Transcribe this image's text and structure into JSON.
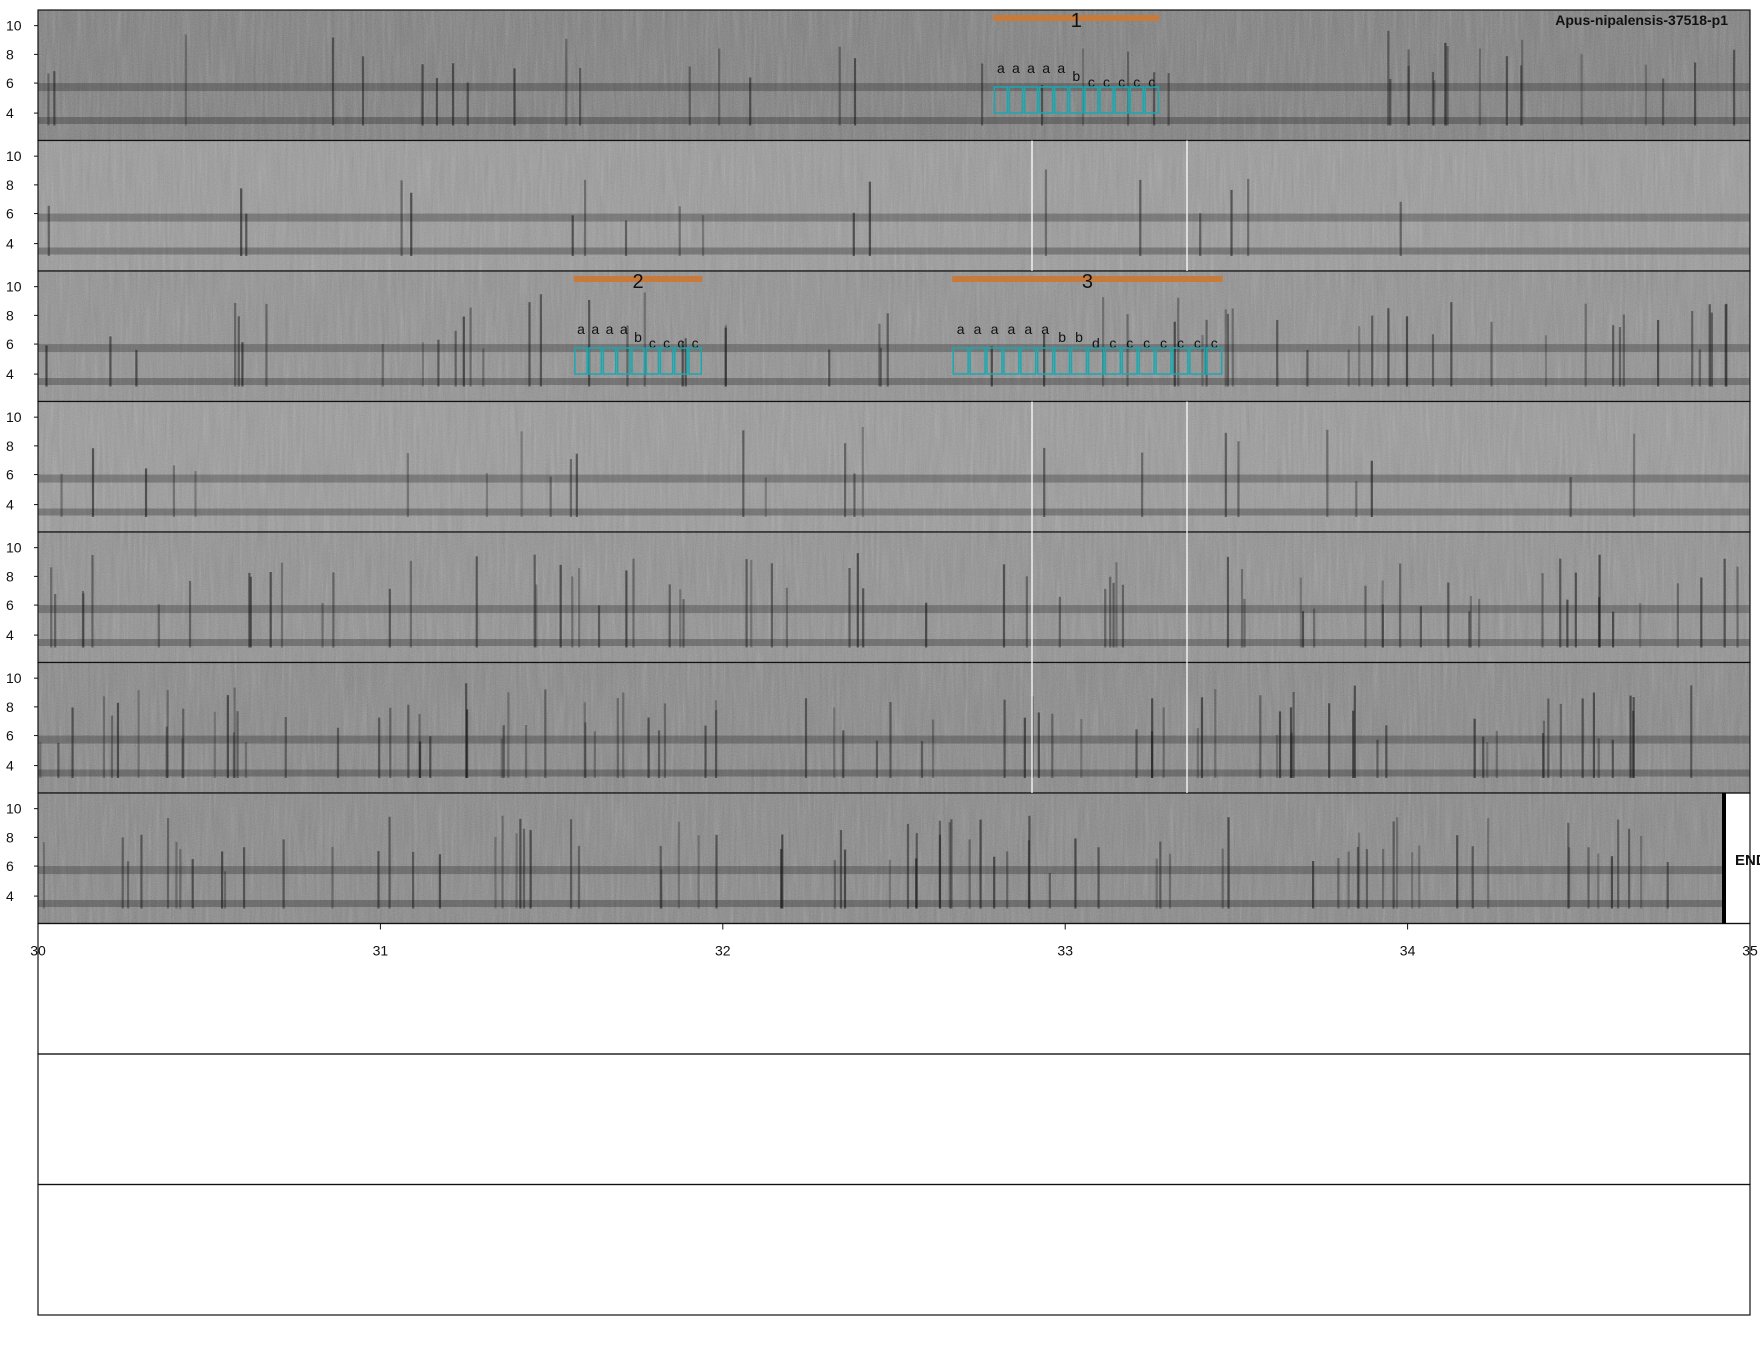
{
  "title": "Apus-nipalensis-37518-p1",
  "end_label": "END",
  "chart_data": {
    "type": "spectrogram",
    "y_ticks": [
      "10",
      "8",
      "6",
      "4"
    ],
    "x_ticks_last_row": [
      "30",
      "31",
      "32",
      "33",
      "34",
      "35"
    ],
    "row_count": 10,
    "filled_rows": 7,
    "empty_rows": 3,
    "colors": {
      "background": "#7a7a7a",
      "phrase_bar": "#c87a3a",
      "syllable_box": "#1aa8b0",
      "label_text": "#111111"
    },
    "phrases": [
      {
        "label": "1",
        "row": 1,
        "start_frac": 0.558,
        "end_frac": 0.655
      },
      {
        "label": "2",
        "row": 3,
        "start_frac": 0.313,
        "end_frac": 0.388
      },
      {
        "label": "3",
        "row": 3,
        "start_frac": 0.534,
        "end_frac": 0.692
      }
    ],
    "syllable_groups": [
      {
        "row": 1,
        "start_frac": 0.558,
        "end_frac": 0.655,
        "labels": [
          "a",
          "a",
          "a",
          "a",
          "a",
          "b",
          "c",
          "c",
          "c",
          "c",
          "c"
        ]
      },
      {
        "row": 3,
        "start_frac": 0.313,
        "end_frac": 0.388,
        "labels": [
          "a",
          "a",
          "a",
          "a",
          "b",
          "c",
          "c",
          "c",
          "c"
        ]
      },
      {
        "row": 3,
        "start_frac": 0.534,
        "end_frac": 0.692,
        "labels": [
          "a",
          "a",
          "a",
          "a",
          "a",
          "a",
          "b",
          "b",
          "d",
          "c",
          "c",
          "c",
          "c",
          "c",
          "c",
          "c"
        ]
      }
    ]
  }
}
